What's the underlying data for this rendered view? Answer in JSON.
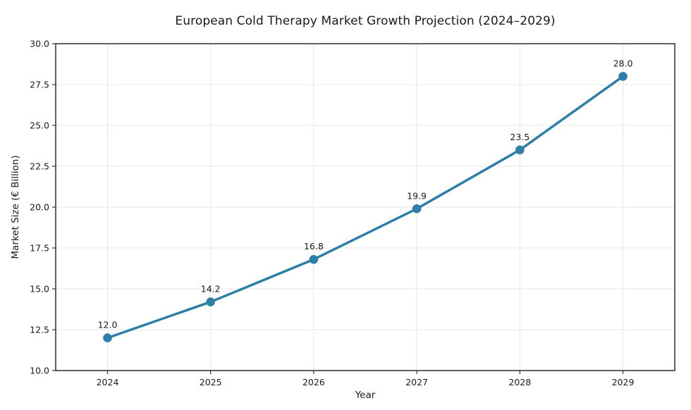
{
  "chart_data": {
    "type": "line",
    "title": "European Cold Therapy Market Growth Projection (2024–2029)",
    "xlabel": "Year",
    "ylabel": "Market Size (€ Billion)",
    "x_tick_labels": [
      "2024",
      "2025",
      "2026",
      "2027",
      "2028",
      "2029"
    ],
    "x": [
      2024,
      2025,
      2026,
      2027,
      2028,
      2029
    ],
    "series": [
      {
        "name": "Market Size",
        "values": [
          12.0,
          14.2,
          16.8,
          19.9,
          23.5,
          28.0
        ],
        "point_labels": [
          "12.0",
          "14.2",
          "16.8",
          "19.9",
          "23.5",
          "28.0"
        ]
      }
    ],
    "ylim": [
      10.0,
      30.0
    ],
    "y_ticks": [
      10.0,
      12.5,
      15.0,
      17.5,
      20.0,
      22.5,
      25.0,
      27.5,
      30.0
    ],
    "y_tick_labels": [
      "10.0",
      "12.5",
      "15.0",
      "17.5",
      "20.0",
      "22.5",
      "25.0",
      "27.5",
      "30.0"
    ],
    "grid": true,
    "legend": "none",
    "colors": {
      "line": "#2E7FA8",
      "marker": "#2E7FA8",
      "grid": "#e7e7e7",
      "spine": "#3a3a3a",
      "tick": "#333333",
      "text": "#1a1a1a",
      "background": "#ffffff"
    }
  }
}
